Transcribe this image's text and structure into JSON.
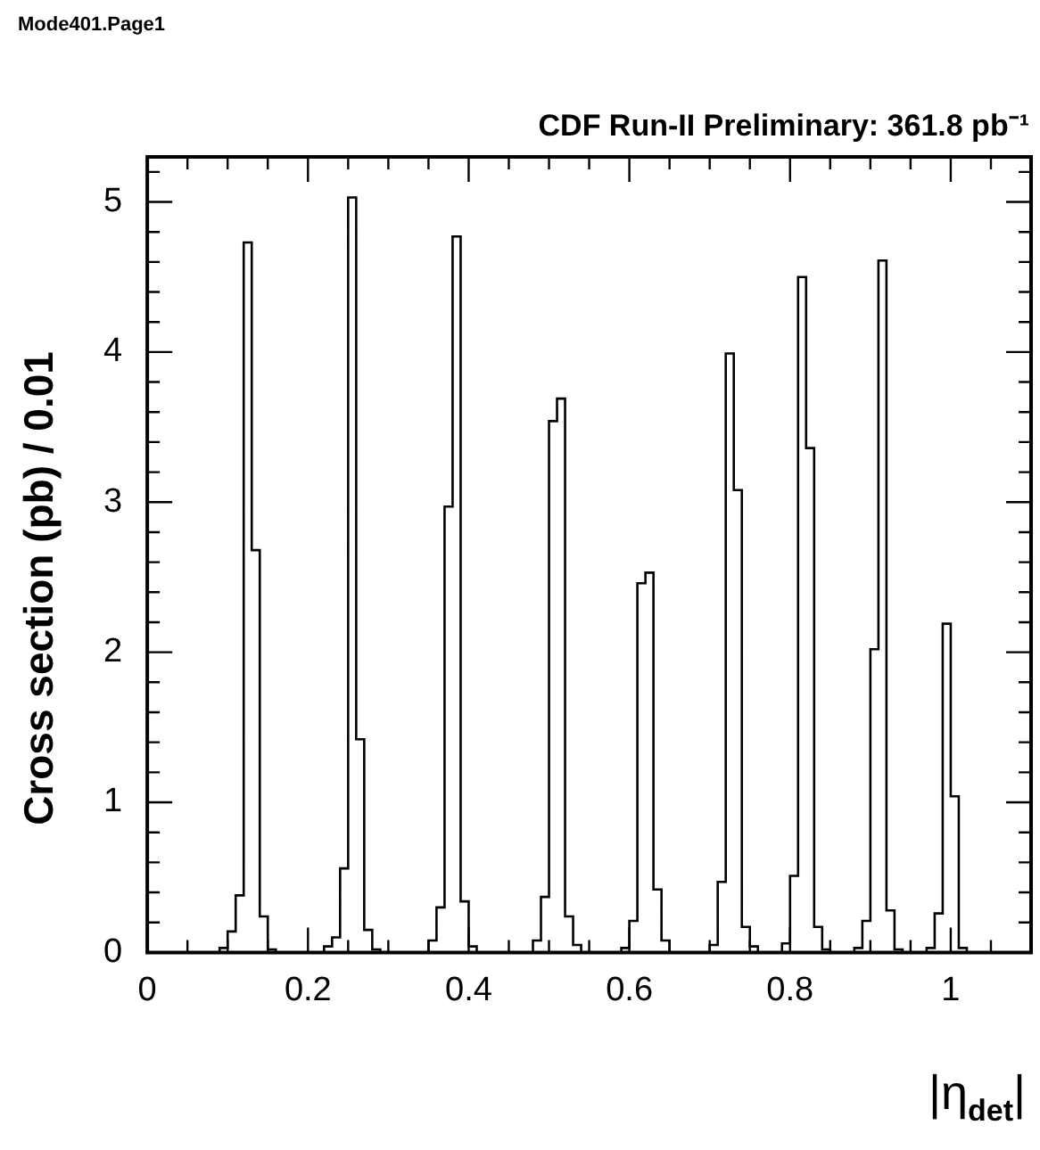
{
  "chart_data": {
    "type": "histogram",
    "title": "CDF Run-II Preliminary:  361.8 pb⁻¹",
    "xlabel": "|η$_{det}$|",
    "ylabel": "Cross section (pb) / 0.01",
    "annotations": [
      "Mode401.Page1"
    ],
    "color": "#000000",
    "bins": [
      0,
      0.01,
      0.02,
      0.03,
      0.04,
      0.05,
      0.06,
      0.07,
      0.08,
      0.09,
      0.1,
      0.11,
      0.12,
      0.13,
      0.14,
      0.15,
      0.16,
      0.17,
      0.18,
      0.19,
      0.2,
      0.21,
      0.22,
      0.23,
      0.24,
      0.25,
      0.26,
      0.27,
      0.28,
      0.29,
      0.3,
      0.31,
      0.32,
      0.33,
      0.34,
      0.35,
      0.36,
      0.37,
      0.38,
      0.39,
      0.4,
      0.41,
      0.42,
      0.43,
      0.44,
      0.45,
      0.46,
      0.47,
      0.48,
      0.49,
      0.5,
      0.51,
      0.52,
      0.53,
      0.54,
      0.55,
      0.56,
      0.57,
      0.58,
      0.59,
      0.6,
      0.61,
      0.62,
      0.63,
      0.64,
      0.65,
      0.66,
      0.67,
      0.68,
      0.69,
      0.7,
      0.71,
      0.72,
      0.73,
      0.74,
      0.75,
      0.76,
      0.77,
      0.78,
      0.79,
      0.8,
      0.81,
      0.82,
      0.83,
      0.84,
      0.85,
      0.86,
      0.87,
      0.88,
      0.89,
      0.9,
      0.91,
      0.92,
      0.93,
      0.94,
      0.95,
      0.96,
      0.97,
      0.98,
      0.99,
      1,
      1.01,
      1.02,
      1.03,
      1.04,
      1.05,
      1.06,
      1.07,
      1.08,
      1.09,
      1.1
    ],
    "values": [
      0,
      0,
      0,
      0,
      0,
      0,
      0,
      0,
      0,
      0.03,
      0.14,
      0.38,
      4.73,
      2.68,
      0.24,
      0.02,
      0,
      0,
      0,
      0,
      0,
      0,
      0.04,
      0.1,
      0.56,
      5.03,
      1.42,
      0.15,
      0.02,
      0,
      0,
      0,
      0,
      0,
      0,
      0.08,
      0.3,
      2.97,
      4.77,
      0.34,
      0.04,
      0,
      0,
      0,
      0,
      0,
      0,
      0,
      0.08,
      0.37,
      3.54,
      3.69,
      0.24,
      0.05,
      0,
      0,
      0,
      0,
      0,
      0.03,
      0.21,
      2.46,
      2.53,
      0.42,
      0.08,
      0,
      0,
      0,
      0,
      0,
      0.05,
      0.47,
      3.99,
      3.08,
      0.17,
      0.04,
      0,
      0,
      0,
      0.06,
      0.51,
      4.5,
      3.36,
      0.17,
      0.02,
      0,
      0,
      0,
      0.03,
      0.21,
      2.02,
      4.61,
      0.28,
      0.02,
      0,
      0,
      0,
      0.03,
      0.26,
      2.19,
      1.04,
      0.03,
      0,
      0,
      0,
      0,
      0,
      0,
      0,
      0
    ],
    "xlim": [
      0,
      1.1
    ],
    "ylim": [
      0,
      5.3
    ],
    "xticks": [
      0,
      {
        "value": 0.05,
        "label": null
      },
      0.2,
      {
        "value": 0.1,
        "label": null
      },
      {
        "value": 0.15,
        "label": null
      },
      {
        "value": 0.25,
        "label": null
      },
      {
        "value": 0.3,
        "label": null
      },
      {
        "value": 0.35,
        "label": null
      },
      0.4,
      {
        "value": 0.45,
        "label": null
      },
      {
        "value": 0.5,
        "label": null
      },
      {
        "value": 0.55,
        "label": null
      },
      0.6,
      {
        "value": 0.65,
        "label": null
      },
      {
        "value": 0.7,
        "label": null
      },
      {
        "value": 0.75,
        "label": null
      },
      0.8,
      {
        "value": 0.85,
        "label": null
      },
      {
        "value": 0.9,
        "label": null
      },
      {
        "value": 0.95,
        "label": null
      },
      1,
      {
        "value": 1.05,
        "label": null
      }
    ],
    "yticks": [
      0,
      {
        "value": 0.2,
        "label": null
      },
      {
        "value": 0.4,
        "label": null
      },
      {
        "value": 0.6,
        "label": null
      },
      {
        "value": 0.8,
        "label": null
      },
      1,
      {
        "value": 1.2,
        "label": null
      },
      {
        "value": 1.4,
        "label": null
      },
      {
        "value": 1.6,
        "label": null
      },
      {
        "value": 1.8,
        "label": null
      },
      2,
      {
        "value": 2.2,
        "label": null
      },
      {
        "value": 2.4,
        "label": null
      },
      {
        "value": 2.6,
        "label": null
      },
      {
        "value": 2.8,
        "label": null
      },
      3,
      {
        "value": 3.2,
        "label": null
      },
      {
        "value": 3.4,
        "label": null
      },
      {
        "value": 3.6,
        "label": null
      },
      {
        "value": 3.8,
        "label": null
      },
      4,
      {
        "value": 4.2,
        "label": null
      },
      {
        "value": 4.4,
        "label": null
      },
      {
        "value": 4.6,
        "label": null
      },
      {
        "value": 4.8,
        "label": null
      },
      5,
      {
        "value": 5.2,
        "label": null
      }
    ]
  }
}
